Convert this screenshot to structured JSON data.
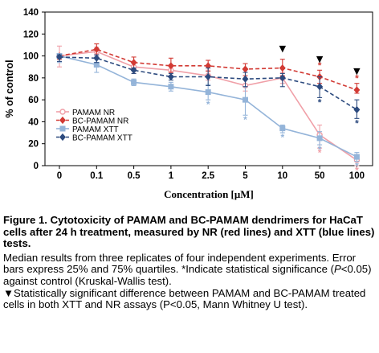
{
  "chart_data": {
    "type": "line",
    "ylabel": "% of control",
    "xlabel": "Concentration [μM]",
    "categories": [
      "0",
      "0.1",
      "0.5",
      "1",
      "2.5",
      "5",
      "10",
      "50",
      "100"
    ],
    "ylim": [
      0,
      140
    ],
    "yticks": [
      0,
      20,
      40,
      60,
      80,
      100,
      120,
      140
    ],
    "grid": false,
    "legend_position": "left",
    "series": [
      {
        "name": "PAMAM NR",
        "color": "#f0a0a8",
        "dashed": false,
        "marker": "circle",
        "values": [
          100,
          104,
          90,
          87,
          82,
          73,
          80,
          28,
          5
        ],
        "low": [
          90,
          99,
          84,
          82,
          78,
          68,
          75,
          16,
          0
        ],
        "high": [
          109,
          108,
          95,
          92,
          87,
          79,
          85,
          37,
          10
        ],
        "significant": [
          false,
          false,
          false,
          false,
          false,
          false,
          false,
          true,
          true
        ]
      },
      {
        "name": "BC-PAMAM NR",
        "color": "#d23a34",
        "dashed": true,
        "marker": "diamond",
        "values": [
          100,
          106,
          94,
          91,
          91,
          88,
          89,
          81,
          69
        ],
        "low": [
          97,
          101,
          88,
          85,
          86,
          82,
          82,
          75,
          66
        ],
        "high": [
          102,
          111,
          99,
          98,
          96,
          93,
          97,
          87,
          75
        ],
        "significant": [
          false,
          false,
          false,
          false,
          false,
          false,
          false,
          true,
          true
        ]
      },
      {
        "name": "PAMAM XTT",
        "color": "#94b4d9",
        "dashed": false,
        "marker": "square",
        "values": [
          100,
          92,
          76,
          72,
          67,
          60,
          34,
          25,
          8
        ],
        "low": [
          94,
          85,
          73,
          68,
          60,
          46,
          30,
          19,
          4
        ],
        "high": [
          102,
          99,
          79,
          76,
          74,
          72,
          37,
          31,
          12
        ],
        "significant": [
          false,
          false,
          false,
          false,
          true,
          true,
          true,
          true,
          true
        ]
      },
      {
        "name": "BC-PAMAM XTT",
        "color": "#2c4a7e",
        "dashed": true,
        "marker": "diamond",
        "values": [
          99,
          98,
          87,
          81,
          81,
          79,
          80,
          72,
          51
        ],
        "low": [
          95,
          94,
          84,
          78,
          73,
          72,
          72,
          62,
          43
        ],
        "high": [
          101,
          101,
          89,
          84,
          89,
          85,
          84,
          81,
          60
        ],
        "significant": [
          false,
          false,
          false,
          false,
          false,
          false,
          false,
          true,
          true
        ]
      }
    ],
    "triangle_markers": [
      "10",
      "50",
      "100"
    ],
    "symbols": {
      "asterisk": "*",
      "triangle": "▼"
    }
  },
  "caption": {
    "title": "Figure 1. Cytotoxicity of PAMAM and BC-PAMAM dendrimers for HaCaT cells after 24 h treatment, measured by NR (red lines) and XTT (blue lines) tests.",
    "body_part1": "Median results from three replicates of four independent experiments. Error bars express 25% and 75% quartiles. *Indicate statistical significance (",
    "body_italic": "P",
    "body_part2": "<0.05) against control (Kruskal-Wallis test).",
    "body_part3": "▼Statistically significant difference between PAMAM and BC-PAMAM treated cells in both XTT and NR assays (P<0.05, Mann Whitney U test)."
  }
}
